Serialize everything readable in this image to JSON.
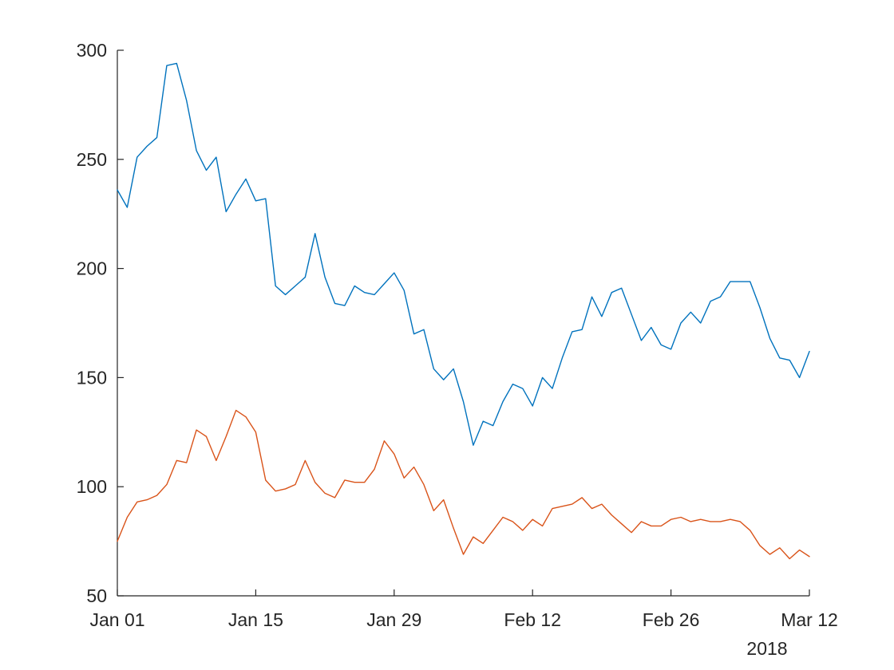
{
  "chart_data": {
    "type": "line",
    "title": "",
    "xlabel": "",
    "ylabel": "",
    "x_start": "2018-01-01",
    "x_end": "2018-03-12",
    "ylim": [
      50,
      300
    ],
    "grid": false,
    "legend": "none",
    "x": [
      "2018-01-01",
      "2018-01-02",
      "2018-01-03",
      "2018-01-04",
      "2018-01-05",
      "2018-01-06",
      "2018-01-07",
      "2018-01-08",
      "2018-01-09",
      "2018-01-10",
      "2018-01-11",
      "2018-01-12",
      "2018-01-13",
      "2018-01-14",
      "2018-01-15",
      "2018-01-16",
      "2018-01-17",
      "2018-01-18",
      "2018-01-19",
      "2018-01-20",
      "2018-01-21",
      "2018-01-22",
      "2018-01-23",
      "2018-01-24",
      "2018-01-25",
      "2018-01-26",
      "2018-01-27",
      "2018-01-28",
      "2018-01-29",
      "2018-01-30",
      "2018-01-31",
      "2018-02-01",
      "2018-02-02",
      "2018-02-03",
      "2018-02-04",
      "2018-02-05",
      "2018-02-06",
      "2018-02-07",
      "2018-02-08",
      "2018-02-09",
      "2018-02-10",
      "2018-02-11",
      "2018-02-12",
      "2018-02-13",
      "2018-02-14",
      "2018-02-15",
      "2018-02-16",
      "2018-02-17",
      "2018-02-18",
      "2018-02-19",
      "2018-02-20",
      "2018-02-21",
      "2018-02-22",
      "2018-02-23",
      "2018-02-24",
      "2018-02-25",
      "2018-02-26",
      "2018-02-27",
      "2018-02-28",
      "2018-03-01",
      "2018-03-02",
      "2018-03-03",
      "2018-03-04",
      "2018-03-05",
      "2018-03-06",
      "2018-03-07",
      "2018-03-08",
      "2018-03-09",
      "2018-03-10",
      "2018-03-11",
      "2018-03-12"
    ],
    "series": [
      {
        "color": "#0072BD",
        "values": [
          236,
          228,
          251,
          256,
          260,
          293,
          294,
          277,
          254,
          245,
          251,
          226,
          234,
          241,
          231,
          232,
          192,
          188,
          192,
          196,
          216,
          196,
          184,
          183,
          192,
          189,
          188,
          193,
          198,
          190,
          170,
          172,
          154,
          149,
          154,
          139,
          119,
          130,
          128,
          139,
          147,
          145,
          137,
          150,
          145,
          159,
          171,
          172,
          187,
          178,
          189,
          191,
          179,
          167,
          173,
          165,
          163,
          175,
          180,
          175,
          185,
          187,
          194,
          194,
          194,
          182,
          168,
          159,
          158,
          150,
          162
        ]
      },
      {
        "color": "#D95319",
        "values": [
          75,
          86,
          93,
          94,
          96,
          101,
          112,
          111,
          126,
          123,
          112,
          123,
          135,
          132,
          125,
          103,
          98,
          99,
          101,
          112,
          102,
          97,
          95,
          103,
          102,
          102,
          108,
          121,
          115,
          104,
          109,
          101,
          89,
          94,
          81,
          69,
          77,
          74,
          80,
          86,
          84,
          80,
          85,
          82,
          90,
          91,
          92,
          95,
          90,
          92,
          87,
          83,
          79,
          84,
          82,
          82,
          85,
          86,
          84,
          85,
          84,
          84,
          85,
          84,
          80,
          73,
          69,
          72,
          67,
          71,
          68
        ]
      }
    ],
    "x_ticks": [
      {
        "date": "2018-01-01",
        "label": "Jan 01"
      },
      {
        "date": "2018-01-15",
        "label": "Jan 15"
      },
      {
        "date": "2018-01-29",
        "label": "Jan 29"
      },
      {
        "date": "2018-02-12",
        "label": "Feb 12"
      },
      {
        "date": "2018-02-26",
        "label": "Feb 26"
      },
      {
        "date": "2018-03-12",
        "label": "Mar 12"
      }
    ],
    "y_ticks": [
      50,
      100,
      150,
      200,
      250,
      300
    ],
    "year_label": "2018"
  }
}
